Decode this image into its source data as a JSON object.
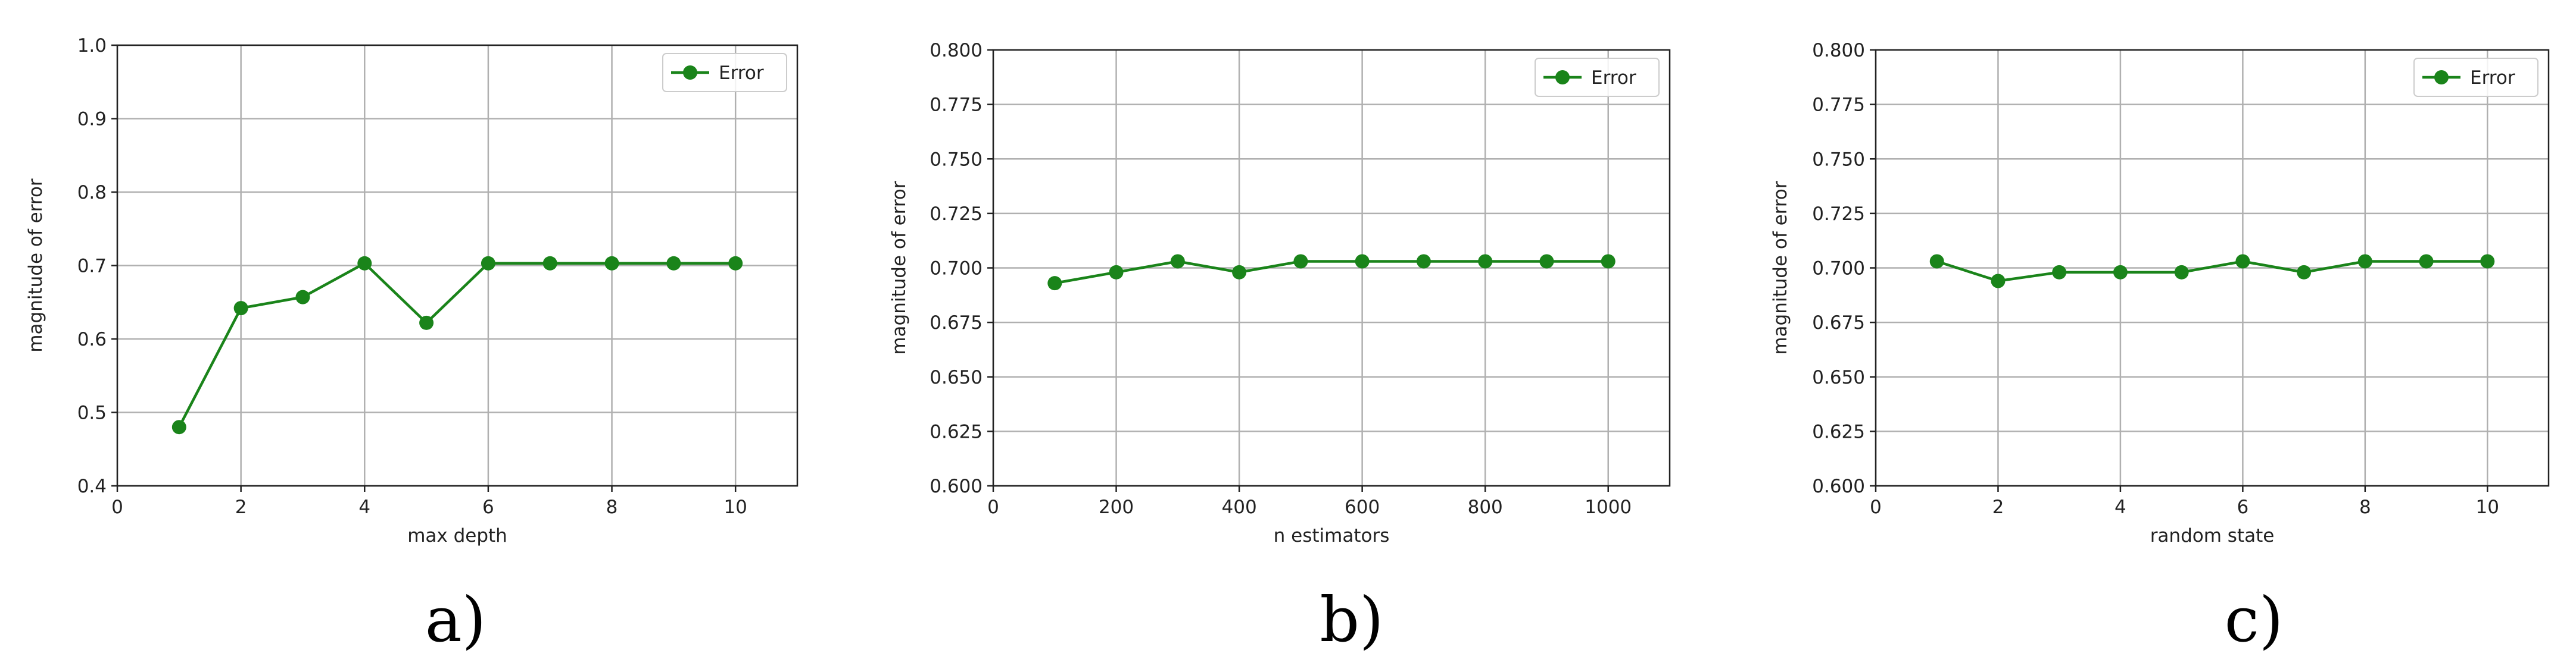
{
  "figure": {
    "panels": [
      {
        "caption": "a)"
      },
      {
        "caption": "b)"
      },
      {
        "caption": "c)"
      }
    ]
  },
  "chart_data": [
    {
      "type": "line",
      "xlabel": "max depth",
      "ylabel": "magnitude of error",
      "xlim": [
        0,
        11
      ],
      "ylim": [
        0.4,
        1.0
      ],
      "xticks": [
        0,
        2,
        4,
        6,
        8,
        10
      ],
      "xtick_labels": [
        "0",
        "2",
        "4",
        "6",
        "8",
        "10"
      ],
      "yticks": [
        0.4,
        0.5,
        0.6,
        0.7,
        0.8,
        0.9,
        1.0
      ],
      "ytick_labels": [
        "0.4",
        "0.5",
        "0.6",
        "0.7",
        "0.8",
        "0.9",
        "1.0"
      ],
      "grid": true,
      "legend": "top-right",
      "color": "#1a841a",
      "series": [
        {
          "name": "Error",
          "x": [
            1,
            2,
            3,
            4,
            5,
            6,
            7,
            8,
            9,
            10
          ],
          "y": [
            0.48,
            0.642,
            0.657,
            0.703,
            0.622,
            0.703,
            0.703,
            0.703,
            0.703,
            0.703
          ]
        }
      ]
    },
    {
      "type": "line",
      "xlabel": "n estimators",
      "ylabel": "magnitude of error",
      "xlim": [
        0,
        1100
      ],
      "ylim": [
        0.6,
        0.8
      ],
      "xticks": [
        0,
        200,
        400,
        600,
        800,
        1000
      ],
      "xtick_labels": [
        "0",
        "200",
        "400",
        "600",
        "800",
        "1000"
      ],
      "yticks": [
        0.6,
        0.625,
        0.65,
        0.675,
        0.7,
        0.725,
        0.75,
        0.775,
        0.8
      ],
      "ytick_labels": [
        "0.600",
        "0.625",
        "0.650",
        "0.675",
        "0.700",
        "0.725",
        "0.750",
        "0.775",
        "0.800"
      ],
      "grid": true,
      "legend": "top-right",
      "color": "#1a841a",
      "series": [
        {
          "name": "Error",
          "x": [
            100,
            200,
            300,
            400,
            500,
            600,
            700,
            800,
            900,
            1000
          ],
          "y": [
            0.693,
            0.698,
            0.703,
            0.698,
            0.703,
            0.703,
            0.703,
            0.703,
            0.703,
            0.703
          ]
        }
      ]
    },
    {
      "type": "line",
      "xlabel": "random state",
      "ylabel": "magnitude of error",
      "xlim": [
        0,
        11
      ],
      "ylim": [
        0.6,
        0.8
      ],
      "xticks": [
        0,
        2,
        4,
        6,
        8,
        10
      ],
      "xtick_labels": [
        "0",
        "2",
        "4",
        "6",
        "8",
        "10"
      ],
      "yticks": [
        0.6,
        0.625,
        0.65,
        0.675,
        0.7,
        0.725,
        0.75,
        0.775,
        0.8
      ],
      "ytick_labels": [
        "0.600",
        "0.625",
        "0.650",
        "0.675",
        "0.700",
        "0.725",
        "0.750",
        "0.775",
        "0.800"
      ],
      "grid": true,
      "legend": "top-right",
      "color": "#1a841a",
      "series": [
        {
          "name": "Error",
          "x": [
            1,
            2,
            3,
            4,
            5,
            6,
            7,
            8,
            9,
            10
          ],
          "y": [
            0.703,
            0.694,
            0.698,
            0.698,
            0.698,
            0.703,
            0.698,
            0.703,
            0.703,
            0.703
          ]
        }
      ]
    }
  ]
}
